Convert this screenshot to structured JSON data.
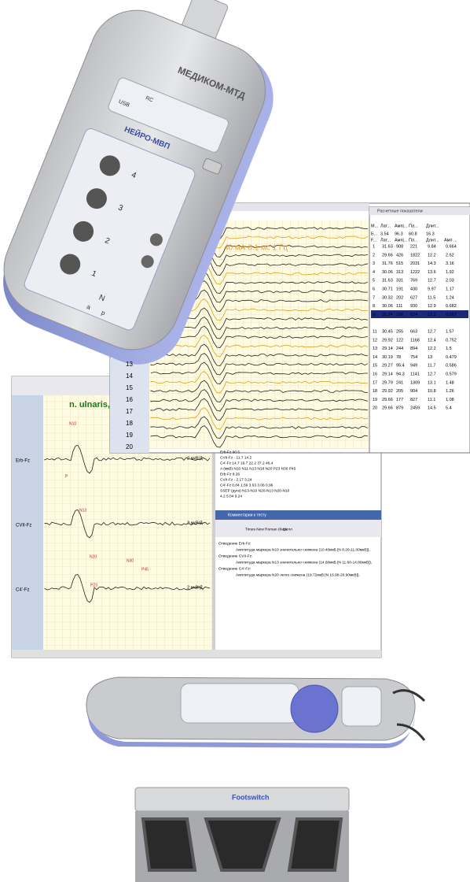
{
  "device": {
    "brand": "МЕДИКОМ-МТД",
    "model": "НЕЙРО-МВП",
    "usb": "USB",
    "rc": "RC",
    "ports": [
      "4",
      "3",
      "2",
      "1"
    ],
    "n": "N",
    "a": "a",
    "p": "p"
  },
  "top_window": {
    "stim": "40 мА 0.1 мс 1 Гц",
    "row_labels": [
      "13",
      "14",
      "15",
      "16",
      "17",
      "18",
      "19",
      "20"
    ],
    "panel_title": "Расчетные показатели",
    "header": [
      "М...",
      "Лат...",
      "Амп|...",
      "Пл...",
      "Длит..."
    ],
    "mean": [
      "Б...",
      "3.54",
      "96.3",
      "60.8",
      "16.3"
    ],
    "header2": [
      "F...",
      "Лат...",
      "Амп|...",
      "Пл...",
      "Длит...",
      "Амп ..."
    ],
    "rows": [
      [
        "1",
        "31.63",
        "908",
        "221",
        "9.84",
        "0.664"
      ],
      [
        "2",
        "29.66",
        "426",
        "1822",
        "12.2",
        "2.62"
      ],
      [
        "3",
        "31.76",
        "515",
        "2031",
        "14.3",
        "3.16"
      ],
      [
        "4",
        "30.06",
        "313",
        "1222",
        "13.6",
        "1.92"
      ],
      [
        "5",
        "31.63",
        "331",
        "769",
        "12.7",
        "2.03"
      ],
      [
        "6",
        "30.71",
        "191",
        "430",
        "9.97",
        "1.17"
      ],
      [
        "7",
        "30.32",
        "202",
        "627",
        "11.5",
        "1.24"
      ],
      [
        "8",
        "30.06",
        "111",
        "930",
        "12.9",
        "0.682"
      ],
      [
        "9",
        "31.24",
        "156",
        "624",
        "12.2",
        "0.957"
      ],
      [
        "10",
        "30.19",
        "214",
        "1263",
        "12.1",
        "1.31"
      ],
      [
        "11",
        "30.45",
        "255",
        "663",
        "12.7",
        "1.57"
      ],
      [
        "12",
        "29.92",
        "122",
        "1168",
        "12.4",
        "0.752"
      ],
      [
        "13",
        "29.14",
        "244",
        "894",
        "12.2",
        "1.5"
      ],
      [
        "14",
        "30.19",
        "78",
        "754",
        "13",
        "0.479"
      ],
      [
        "15",
        "29.27",
        "95.4",
        "949",
        "11.7",
        "0.586"
      ],
      [
        "16",
        "29.14",
        "94.3",
        "1141",
        "12.7",
        "0.579"
      ],
      [
        "17",
        "29.79",
        "241",
        "1309",
        "13.1",
        "1.48"
      ],
      [
        "18",
        "29.92",
        "205",
        "904",
        "10.8",
        "1.26"
      ],
      [
        "19",
        "29.66",
        "177",
        "827",
        "11.1",
        "1.08"
      ],
      [
        "20",
        "29.66",
        "879",
        "2459",
        "14.5",
        "5.4"
      ]
    ]
  },
  "bottom_window": {
    "title": "n. ulnaris,",
    "leads": [
      "Erb-Fz",
      "CVII-Fz",
      "C4'-Fz"
    ],
    "scales": [
      "2 мкВ/Д",
      "2 мкВ/Д",
      "2 мкВ/Д"
    ],
    "markers": [
      "N10",
      "P",
      "N13",
      "N20",
      "N30",
      "P23",
      "P45"
    ],
    "table_lines": [
      "Erb-Fz    90.5",
      "CVII-Fz    -    11.7    14.2",
      "C4'-Fz                 14.7  19.7  22.2  37.2  46.4",
      "A (мкВ)   N10   N11   N13   N18   N20   P23   N30   P45",
      "Erb-Fz    8.26",
      "CVII-Fz    -    2.17   3.24",
      "C4'-Fz                0.84  1.59  3.63  3.06  0.96",
      "SSEP (дуга)  N13-N10  N20-N13  N20-N10",
      "     4.2    5.04    9.24"
    ],
    "comment_title": "Комментарии к тесту",
    "font": "Times New Roman (Кирилл",
    "font_size": "11",
    "report": [
      "Отведение Erb-Fz:",
      "Амплитуда маркера N10 значительно снижена (10.40мкВ [N 8.20-11.00мкВ]),",
      "Отведение CVII-Fz:",
      "Амплитуда маркера N13 значительно снижена (14.60мкВ [N 11.60-14.80мкВ]),",
      "Отведение C4'-Fz:",
      "Амплитуда маркера N20 легко снижена (19.72мкВ [N 16.90-20.90мкВ]),"
    ]
  },
  "footswitch": {
    "label": "Footswitch"
  }
}
